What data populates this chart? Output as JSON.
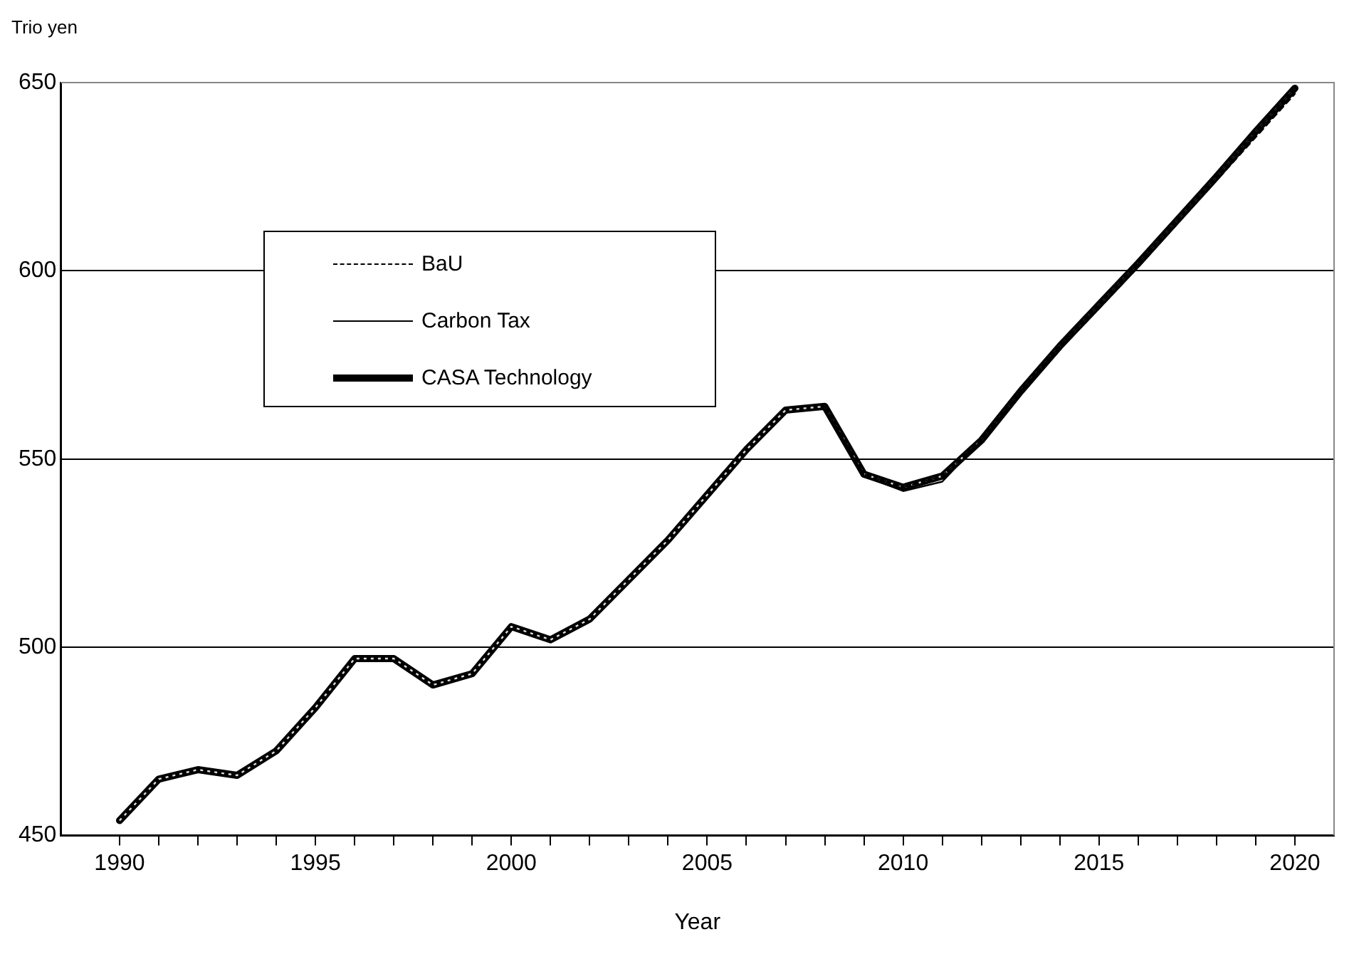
{
  "chart_data": {
    "type": "line",
    "xlabel": "Year",
    "ylabel": "Trio yen",
    "x": [
      1990,
      1991,
      1992,
      1993,
      1994,
      1995,
      1996,
      1997,
      1998,
      1999,
      2000,
      2001,
      2002,
      2003,
      2004,
      2005,
      2006,
      2007,
      2008,
      2009,
      2010,
      2011,
      2012,
      2013,
      2014,
      2015,
      2016,
      2017,
      2018,
      2019,
      2020
    ],
    "series": [
      {
        "name": "BaU",
        "color": "#000000",
        "line_style": "dashed",
        "values": [
          null,
          null,
          null,
          null,
          null,
          null,
          null,
          null,
          null,
          null,
          null,
          null,
          null,
          null,
          null,
          null,
          null,
          null,
          564,
          546,
          542.5,
          545.5,
          555,
          567.5,
          579.5,
          590,
          601,
          612.5,
          624,
          635.5,
          647
        ]
      },
      {
        "name": "Carbon Tax",
        "color": "#000000",
        "line_style": "solid",
        "values": [
          null,
          null,
          null,
          null,
          null,
          null,
          null,
          null,
          null,
          null,
          null,
          null,
          null,
          null,
          null,
          null,
          null,
          null,
          564,
          545.5,
          541.5,
          544,
          555,
          568,
          580,
          591,
          602,
          613.5,
          625,
          637,
          648.5
        ]
      },
      {
        "name": "CASA Technology",
        "color": "#000000",
        "line_style": "solid",
        "values": [
          454,
          465,
          467.5,
          466,
          472.5,
          484,
          497,
          497,
          490,
          493,
          505.5,
          502,
          507.5,
          518,
          528.5,
          540.5,
          552.5,
          563,
          564,
          546,
          542.5,
          545.5,
          555,
          568,
          580,
          591,
          602,
          613.5,
          625,
          637,
          648.5
        ]
      }
    ],
    "xlim": [
      1988.5,
      2021
    ],
    "xticks": [
      1990,
      {
        "value": 1991,
        "label": null
      },
      {
        "value": 1992,
        "label": null
      },
      {
        "value": 1993,
        "label": null
      },
      {
        "value": 1994,
        "label": null
      },
      1995,
      {
        "value": 1996,
        "label": null
      },
      {
        "value": 1997,
        "label": null
      },
      {
        "value": 1998,
        "label": null
      },
      {
        "value": 1999,
        "label": null
      },
      2000,
      {
        "value": 2001,
        "label": null
      },
      {
        "value": 2002,
        "label": null
      },
      {
        "value": 2003,
        "label": null
      },
      {
        "value": 2004,
        "label": null
      },
      2005,
      {
        "value": 2006,
        "label": null
      },
      {
        "value": 2007,
        "label": null
      },
      {
        "value": 2008,
        "label": null
      },
      {
        "value": 2009,
        "label": null
      },
      2010,
      {
        "value": 2011,
        "label": null
      },
      {
        "value": 2012,
        "label": null
      },
      {
        "value": 2013,
        "label": null
      },
      {
        "value": 2014,
        "label": null
      },
      2015,
      {
        "value": 2016,
        "label": null
      },
      {
        "value": 2017,
        "label": null
      },
      {
        "value": 2018,
        "label": null
      },
      {
        "value": 2019,
        "label": null
      },
      2020
    ],
    "ylim": [
      450,
      650
    ],
    "yticks": [
      450,
      500,
      550,
      600,
      650
    ],
    "grid": "y",
    "legend": "top left",
    "marker": "none"
  }
}
